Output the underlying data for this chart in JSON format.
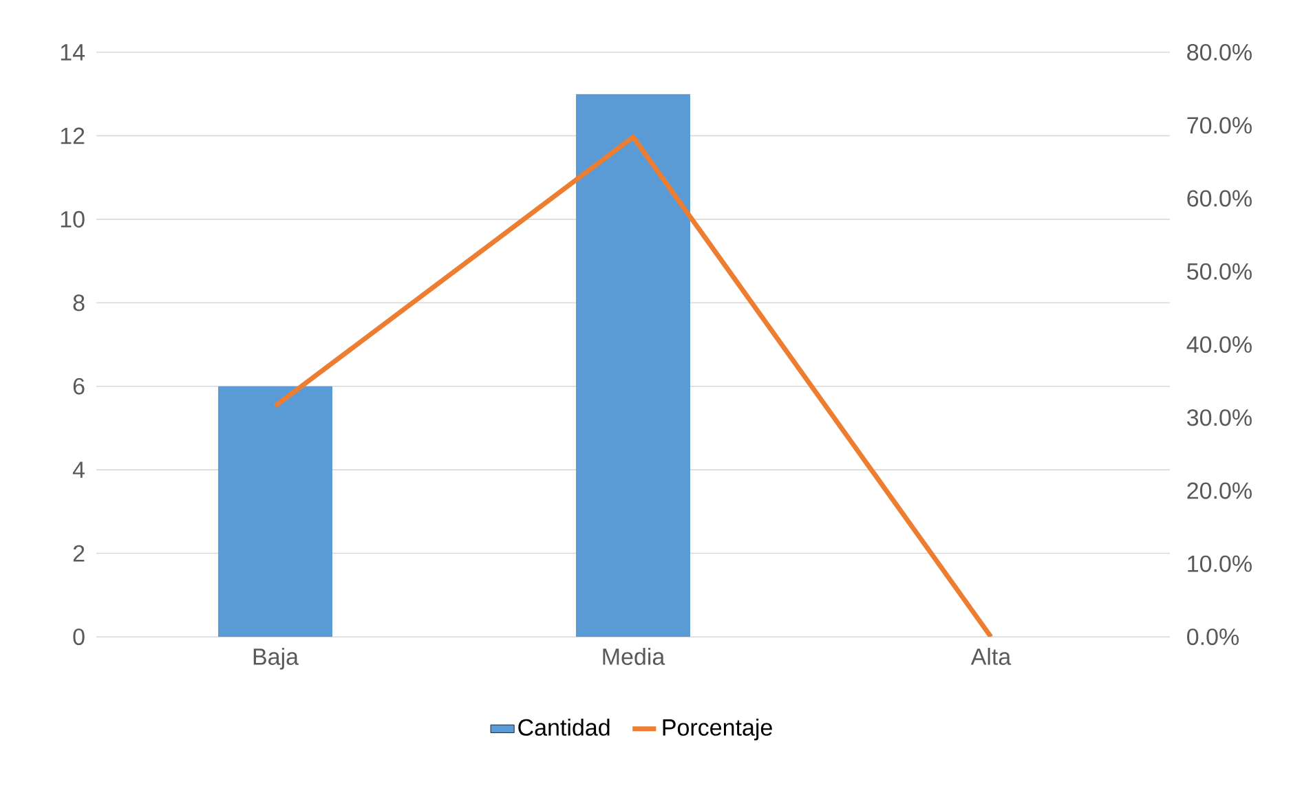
{
  "chart_data": {
    "type": "bar",
    "categories": [
      "Baja",
      "Media",
      "Alta"
    ],
    "series": [
      {
        "name": "Cantidad",
        "color": "#5b9bd5",
        "values": [
          6,
          13,
          0
        ]
      },
      {
        "name": "Porcentaje",
        "type": "line",
        "axis": "y2",
        "color": "#ed7d31",
        "values": [
          31.6,
          68.4,
          0
        ]
      }
    ],
    "ylim": [
      0,
      14
    ],
    "yticks": [
      0,
      2,
      4,
      6,
      8,
      10,
      12,
      14
    ],
    "y2lim": [
      0,
      80
    ],
    "y2ticks": [
      {
        "value": 0,
        "label": "0.0%"
      },
      {
        "value": 10,
        "label": "10.0%"
      },
      {
        "value": 20,
        "label": "20.0%"
      },
      {
        "value": 30,
        "label": "30.0%"
      },
      {
        "value": 40,
        "label": "40.0%"
      },
      {
        "value": 50,
        "label": "50.0%"
      },
      {
        "value": 60,
        "label": "60.0%"
      },
      {
        "value": 70,
        "label": "70.0%"
      },
      {
        "value": 80,
        "label": "80.0%"
      }
    ],
    "grid": "y",
    "legend": "bottom"
  }
}
